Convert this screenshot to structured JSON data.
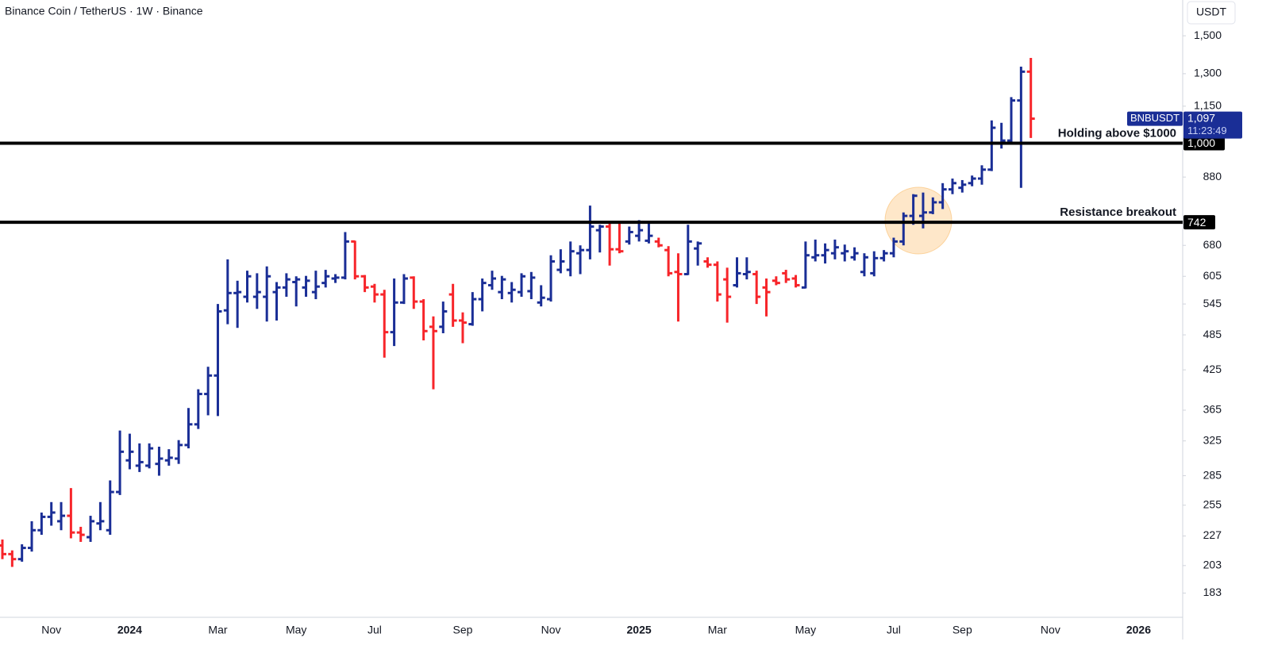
{
  "chart_data": {
    "type": "ohlc",
    "title": "Binance Coin / TetherUS · 1W · Binance",
    "currency": "USDT",
    "log_scale": true,
    "grid": false,
    "up_color": "#1a2e96",
    "down_color": "#f7252a",
    "categories": [
      null,
      null,
      null,
      null,
      null,
      "Nov",
      null,
      null,
      null,
      null,
      null,
      null,
      null,
      "2024",
      null,
      null,
      null,
      null,
      null,
      null,
      null,
      null,
      "Mar",
      null,
      null,
      null,
      null,
      null,
      null,
      null,
      "May",
      null,
      null,
      null,
      null,
      null,
      null,
      null,
      "Jul",
      null,
      null,
      null,
      null,
      null,
      null,
      null,
      null,
      "Sep",
      null,
      null,
      null,
      null,
      null,
      null,
      null,
      null,
      "Nov",
      null,
      null,
      null,
      null,
      null,
      null,
      null,
      null,
      "2025",
      null,
      null,
      null,
      null,
      null,
      null,
      null,
      "Mar",
      null,
      null,
      null,
      null,
      null,
      null,
      null,
      null,
      "May",
      null,
      null,
      null,
      null,
      null,
      null,
      null,
      null,
      "Jul",
      null,
      null,
      null,
      null,
      null,
      null,
      "Sep",
      null,
      null,
      null,
      null,
      null,
      null,
      null,
      null,
      "Nov",
      null,
      null,
      null,
      null,
      null,
      null,
      null,
      null,
      "2026",
      null,
      null,
      null,
      null
    ],
    "open": [
      219,
      212,
      208,
      217,
      232,
      244,
      240,
      245,
      230,
      226,
      238,
      232,
      268,
      302,
      296,
      296,
      298,
      302,
      304,
      320,
      346,
      388,
      416,
      532,
      568,
      560,
      560,
      560,
      570,
      580,
      592,
      580,
      570,
      590,
      600,
      602,
      690,
      605,
      582,
      565,
      490,
      548,
      602,
      550,
      500,
      500,
      565,
      512,
      505,
      555,
      585,
      570,
      568,
      570,
      572,
      548,
      555,
      620,
      620,
      660,
      668,
      720,
      730,
      670,
      690,
      705,
      692,
      690,
      668,
      615,
      610,
      672,
      640,
      632,
      598,
      585,
      610,
      610,
      580,
      595,
      612,
      600,
      580,
      650,
      655,
      660,
      660,
      650,
      615,
      612,
      648,
      660,
      690,
      760,
      760,
      770,
      800,
      840,
      845,
      860,
      875,
      905,
      1000,
      1010,
      1175,
      1310,
      null,
      null,
      null,
      null,
      null,
      null,
      null,
      null,
      null,
      null,
      null,
      null,
      null,
      null,
      null
    ],
    "high": [
      224,
      215,
      220,
      240,
      248,
      258,
      258,
      272,
      235,
      245,
      258,
      280,
      338,
      334,
      322,
      322,
      318,
      315,
      326,
      368,
      395,
      430,
      545,
      645,
      595,
      618,
      612,
      628,
      592,
      612,
      605,
      606,
      618,
      620,
      610,
      715,
      692,
      608,
      588,
      575,
      600,
      610,
      605,
      555,
      520,
      550,
      588,
      528,
      570,
      600,
      618,
      606,
      592,
      612,
      615,
      585,
      655,
      670,
      690,
      680,
      790,
      735,
      740,
      745,
      730,
      748,
      742,
      700,
      678,
      660,
      735,
      690,
      650,
      640,
      625,
      650,
      650,
      618,
      600,
      605,
      620,
      608,
      690,
      695,
      685,
      695,
      682,
      675,
      660,
      665,
      668,
      700,
      770,
      825,
      830,
      815,
      860,
      875,
      870,
      885,
      920,
      1090,
      1080,
      1190,
      1335,
      1380,
      null,
      null,
      null,
      null,
      null,
      null,
      null,
      null,
      null,
      null,
      null,
      null,
      null,
      null,
      null
    ],
    "low": [
      208,
      202,
      206,
      214,
      228,
      236,
      232,
      225,
      222,
      222,
      232,
      228,
      265,
      292,
      289,
      293,
      285,
      296,
      298,
      316,
      340,
      358,
      357,
      505,
      498,
      548,
      535,
      510,
      512,
      560,
      540,
      560,
      555,
      580,
      590,
      598,
      598,
      570,
      548,
      445,
      465,
      545,
      535,
      475,
      395,
      488,
      500,
      470,
      502,
      530,
      575,
      555,
      548,
      560,
      555,
      540,
      550,
      612,
      605,
      610,
      645,
      662,
      630,
      660,
      682,
      690,
      685,
      675,
      605,
      510,
      608,
      630,
      625,
      550,
      508,
      580,
      598,
      545,
      520,
      585,
      590,
      580,
      578,
      640,
      635,
      645,
      640,
      642,
      605,
      605,
      640,
      650,
      680,
      735,
      725,
      765,
      780,
      825,
      830,
      850,
      855,
      900,
      980,
      1000,
      845,
      1020,
      null,
      null,
      null,
      null,
      null,
      null,
      null,
      null,
      null,
      null,
      null,
      null,
      null,
      null,
      null
    ],
    "close": [
      212,
      208,
      217,
      232,
      244,
      248,
      245,
      230,
      228,
      240,
      240,
      268,
      312,
      312,
      300,
      316,
      304,
      305,
      320,
      346,
      388,
      416,
      530,
      568,
      570,
      605,
      570,
      605,
      580,
      598,
      598,
      595,
      582,
      605,
      602,
      690,
      605,
      580,
      565,
      490,
      548,
      600,
      550,
      492,
      492,
      530,
      512,
      508,
      555,
      590,
      600,
      598,
      575,
      605,
      602,
      558,
      640,
      640,
      665,
      668,
      730,
      730,
      670,
      665,
      715,
      720,
      705,
      680,
      612,
      610,
      690,
      685,
      632,
      565,
      560,
      612,
      615,
      560,
      570,
      590,
      598,
      585,
      655,
      655,
      668,
      675,
      665,
      660,
      650,
      648,
      660,
      690,
      760,
      820,
      770,
      800,
      840,
      860,
      855,
      875,
      905,
      1060,
      1010,
      1175,
      1310,
      1097,
      null,
      null,
      null,
      null,
      null,
      null,
      null,
      null,
      null,
      null,
      null,
      null,
      null,
      null,
      null
    ],
    "ylim": [
      167,
      1717
    ],
    "yticks": [
      {
        "value": 1500,
        "label": "1,500"
      },
      {
        "value": 1300,
        "label": "1,300"
      },
      {
        "value": 1150,
        "label": "1,150"
      },
      880,
      680,
      605,
      545,
      485,
      425,
      365,
      325,
      285,
      255,
      227,
      203,
      183
    ],
    "levels": [
      {
        "value": 1000,
        "label": "1,000",
        "annotation": "Holding above $1000"
      },
      {
        "value": 742,
        "annotation": "Resistance breakout"
      }
    ],
    "last_price": {
      "name": "BNBUSDT",
      "value": 1097,
      "label": "1,097",
      "countdown": "11:23:49"
    }
  }
}
